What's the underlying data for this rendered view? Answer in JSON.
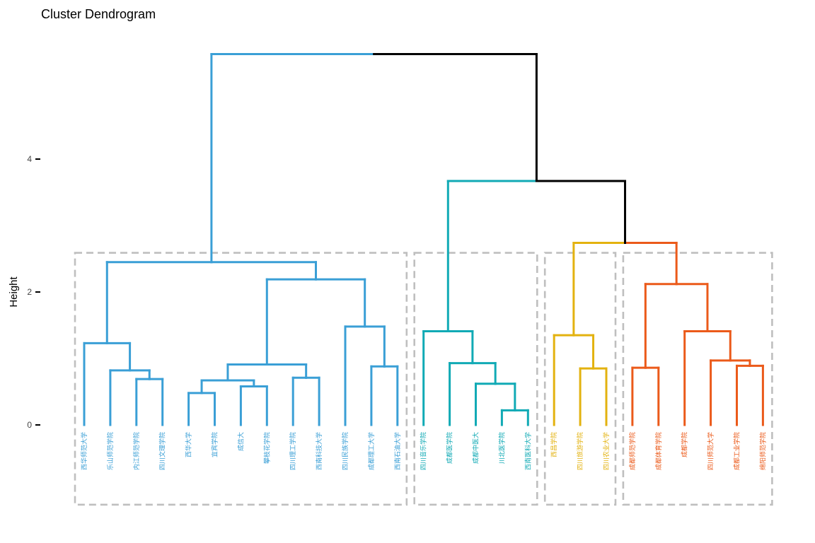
{
  "chart_data": {
    "type": "dendrogram",
    "title": "Cluster Dendrogram",
    "ylabel": "Height",
    "xlabel": "",
    "y_ticks": [
      0,
      2,
      4
    ],
    "ylim": [
      -1.2,
      5.8
    ],
    "grid": false,
    "colors": {
      "root": "#000000",
      "cluster_1": "#3a9fd6",
      "cluster_2": "#11aab5",
      "cluster_3": "#e3b20f",
      "cluster_4": "#eb5a1a",
      "box": "#bfbfbf"
    },
    "clusters": [
      {
        "id": 1,
        "color_key": "cluster_1",
        "leaves": [
          "西华师范大学",
          "乐山师范学院",
          "内江师范学院",
          "四川文理学院",
          "西华大学",
          "宜宾学院",
          "成信大",
          "攀枝花学院",
          "四川理工学院",
          "西南科技大学",
          "四川民族学院",
          "成都理工大学",
          "西南石油大学"
        ]
      },
      {
        "id": 2,
        "color_key": "cluster_2",
        "leaves": [
          "四川音乐学院",
          "成都医学院",
          "成都中医大",
          "川北医学院",
          "西南医科大学"
        ]
      },
      {
        "id": 3,
        "color_key": "cluster_3",
        "leaves": [
          "西昌学院",
          "四川旅游学院",
          "四川农业大学"
        ]
      },
      {
        "id": 4,
        "color_key": "cluster_4",
        "leaves": [
          "成都师范学院",
          "成都体育学院",
          "成都学院",
          "四川师范大学",
          "成都工业学院",
          "绵阳师范学院"
        ]
      }
    ],
    "merges": [
      {
        "id": "m1",
        "children": [
          "四川农业大学",
          "四川旅游学院"
        ],
        "height": 0.85,
        "cluster": 3
      },
      {
        "id": "m2",
        "children": [
          "西昌学院",
          "m1"
        ],
        "height": 1.35,
        "cluster": 3
      },
      {
        "id": "m3",
        "children": [
          "川北医学院",
          "西南医科大学"
        ],
        "height": 0.22,
        "cluster": 2
      },
      {
        "id": "m4",
        "children": [
          "成都中医大",
          "m3"
        ],
        "height": 0.62,
        "cluster": 2
      },
      {
        "id": "m5",
        "children": [
          "成都医学院",
          "m4"
        ],
        "height": 0.93,
        "cluster": 2
      },
      {
        "id": "m6",
        "children": [
          "四川音乐学院",
          "m5"
        ],
        "height": 1.41,
        "cluster": 2
      },
      {
        "id": "m7",
        "children": [
          "西华大学",
          "宜宾学院"
        ],
        "height": 0.48,
        "cluster": 1
      },
      {
        "id": "m8",
        "children": [
          "成信大",
          "攀枝花学院"
        ],
        "height": 0.58,
        "cluster": 1
      },
      {
        "id": "m9",
        "children": [
          "m7",
          "m8"
        ],
        "height": 0.67,
        "cluster": 1
      },
      {
        "id": "m10",
        "children": [
          "四川理工学院",
          "西南科技大学"
        ],
        "height": 0.71,
        "cluster": 1
      },
      {
        "id": "m11",
        "children": [
          "m9",
          "m10"
        ],
        "height": 0.91,
        "cluster": 1
      },
      {
        "id": "m12",
        "children": [
          "成都理工大学",
          "西南石油大学"
        ],
        "height": 0.88,
        "cluster": 1
      },
      {
        "id": "m13",
        "children": [
          "四川民族学院",
          "m12"
        ],
        "height": 1.48,
        "cluster": 1
      },
      {
        "id": "m14",
        "children": [
          "m11",
          "m13"
        ],
        "height": 2.19,
        "cluster": 1
      },
      {
        "id": "m15",
        "children": [
          "内江师范学院",
          "四川文理学院"
        ],
        "height": 0.69,
        "cluster": 1
      },
      {
        "id": "m16",
        "children": [
          "乐山师范学院",
          "m15"
        ],
        "height": 0.82,
        "cluster": 1
      },
      {
        "id": "m17",
        "children": [
          "西华师范大学",
          "m16"
        ],
        "height": 1.23,
        "cluster": 1
      },
      {
        "id": "m18",
        "children": [
          "m17",
          "m14"
        ],
        "height": 2.45,
        "cluster": 1
      },
      {
        "id": "m19",
        "children": [
          "成都工业学院",
          "绵阳师范学院"
        ],
        "height": 0.89,
        "cluster": 4
      },
      {
        "id": "m20",
        "children": [
          "四川师范大学",
          "m19"
        ],
        "height": 0.97,
        "cluster": 4
      },
      {
        "id": "m21",
        "children": [
          "成都学院",
          "m20"
        ],
        "height": 1.41,
        "cluster": 4
      },
      {
        "id": "m22",
        "children": [
          "成都师范学院",
          "成都体育学院"
        ],
        "height": 0.86,
        "cluster": 4
      },
      {
        "id": "m23",
        "children": [
          "m22",
          "m21"
        ],
        "height": 2.12,
        "cluster": 4
      },
      {
        "id": "m24",
        "children": [
          "m2",
          "m23"
        ],
        "height": 2.74,
        "cluster": 0
      },
      {
        "id": "m25",
        "children": [
          "m6",
          "m24"
        ],
        "height": 3.67,
        "cluster": 0
      },
      {
        "id": "m26",
        "children": [
          "m18",
          "m25"
        ],
        "height": 5.58,
        "cluster": 0
      }
    ],
    "cut_boxes": true
  }
}
